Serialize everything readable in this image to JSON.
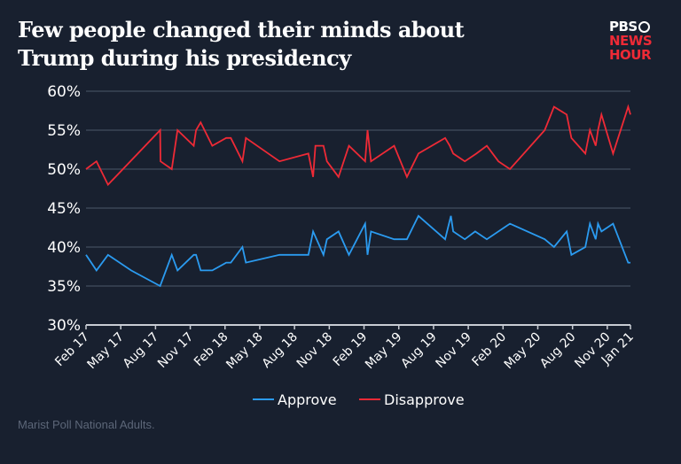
{
  "title": "Few people changed their minds about Trump during his presidency",
  "logo": {
    "line1": "PBS",
    "line2": "NEWS",
    "line3": "HOUR"
  },
  "source": "Marist Poll National Adults.",
  "chart_data": {
    "type": "line",
    "title": "Few people changed their minds about Trump during his presidency",
    "xlabel": "",
    "ylabel": "",
    "ylim": [
      30,
      60
    ],
    "xlim": [
      "2017-02-01",
      "2021-01-01"
    ],
    "grid": true,
    "legend_position": "bottom",
    "y_ticks": [
      "30%",
      "35%",
      "40%",
      "45%",
      "50%",
      "55%",
      "60%"
    ],
    "y_tick_values": [
      30,
      35,
      40,
      45,
      50,
      55,
      60
    ],
    "x_ticks": [
      {
        "label": "Feb 17",
        "date": "2017-02-01"
      },
      {
        "label": "May 17",
        "date": "2017-05-01"
      },
      {
        "label": "Aug 17",
        "date": "2017-08-01"
      },
      {
        "label": "Nov 17",
        "date": "2017-11-01"
      },
      {
        "label": "Feb 18",
        "date": "2018-02-01"
      },
      {
        "label": "May 18",
        "date": "2018-05-01"
      },
      {
        "label": "Aug 18",
        "date": "2018-08-01"
      },
      {
        "label": "Nov 18",
        "date": "2018-11-01"
      },
      {
        "label": "Feb 19",
        "date": "2019-02-01"
      },
      {
        "label": "May 19",
        "date": "2019-05-01"
      },
      {
        "label": "Aug 19",
        "date": "2019-08-01"
      },
      {
        "label": "Nov 19",
        "date": "2019-11-01"
      },
      {
        "label": "Feb 20",
        "date": "2020-02-01"
      },
      {
        "label": "May 20",
        "date": "2020-05-01"
      },
      {
        "label": "Aug 20",
        "date": "2020-08-01"
      },
      {
        "label": "Nov 20",
        "date": "2020-11-01"
      },
      {
        "label": "Jan 21",
        "date": "2021-01-01"
      }
    ],
    "series": [
      {
        "name": "Approve",
        "color": "#2b9bf0",
        "points": [
          [
            "2017-02-01",
            39
          ],
          [
            "2017-02-28",
            37
          ],
          [
            "2017-03-28",
            39
          ],
          [
            "2017-05-28",
            37
          ],
          [
            "2017-08-13",
            35
          ],
          [
            "2017-09-13",
            39
          ],
          [
            "2017-09-28",
            37
          ],
          [
            "2017-11-10",
            39
          ],
          [
            "2017-11-16",
            39
          ],
          [
            "2017-11-28",
            37
          ],
          [
            "2017-12-28",
            37
          ],
          [
            "2018-02-04",
            38
          ],
          [
            "2018-02-16",
            38
          ],
          [
            "2018-03-16",
            40
          ],
          [
            "2018-03-25",
            38
          ],
          [
            "2018-06-22",
            39
          ],
          [
            "2018-09-07",
            39
          ],
          [
            "2018-09-19",
            42
          ],
          [
            "2018-10-16",
            39
          ],
          [
            "2018-10-25",
            41
          ],
          [
            "2018-11-25",
            42
          ],
          [
            "2018-12-22",
            39
          ],
          [
            "2019-02-04",
            43
          ],
          [
            "2019-02-10",
            39
          ],
          [
            "2019-02-19",
            42
          ],
          [
            "2019-04-19",
            41
          ],
          [
            "2019-05-22",
            41
          ],
          [
            "2019-06-22",
            44
          ],
          [
            "2019-09-01",
            41
          ],
          [
            "2019-09-16",
            44
          ],
          [
            "2019-09-22",
            42
          ],
          [
            "2019-10-22",
            41
          ],
          [
            "2019-11-19",
            42
          ],
          [
            "2019-12-19",
            41
          ],
          [
            "2020-02-19",
            43
          ],
          [
            "2020-05-19",
            41
          ],
          [
            "2020-06-13",
            40
          ],
          [
            "2020-07-16",
            42
          ],
          [
            "2020-07-28",
            39
          ],
          [
            "2020-09-04",
            40
          ],
          [
            "2020-09-16",
            43
          ],
          [
            "2020-10-01",
            41
          ],
          [
            "2020-10-07",
            43
          ],
          [
            "2020-10-16",
            42
          ],
          [
            "2020-11-16",
            43
          ],
          [
            "2020-12-25",
            38
          ],
          [
            "2021-01-01",
            38
          ]
        ]
      },
      {
        "name": "Disapprove",
        "color": "#ee2a36",
        "points": [
          [
            "2017-02-01",
            50
          ],
          [
            "2017-02-28",
            51
          ],
          [
            "2017-03-28",
            48
          ],
          [
            "2017-08-13",
            55
          ],
          [
            "2017-08-14",
            51
          ],
          [
            "2017-09-13",
            50
          ],
          [
            "2017-09-28",
            55
          ],
          [
            "2017-11-10",
            53
          ],
          [
            "2017-11-16",
            55
          ],
          [
            "2017-11-28",
            56
          ],
          [
            "2017-12-28",
            53
          ],
          [
            "2018-02-04",
            54
          ],
          [
            "2018-02-16",
            54
          ],
          [
            "2018-03-16",
            51
          ],
          [
            "2018-03-25",
            54
          ],
          [
            "2018-06-22",
            51
          ],
          [
            "2018-09-07",
            52
          ],
          [
            "2018-09-19",
            49
          ],
          [
            "2018-09-25",
            53
          ],
          [
            "2018-10-16",
            53
          ],
          [
            "2018-10-25",
            51
          ],
          [
            "2018-11-25",
            49
          ],
          [
            "2018-12-22",
            53
          ],
          [
            "2019-02-04",
            51
          ],
          [
            "2019-02-10",
            55
          ],
          [
            "2019-02-19",
            51
          ],
          [
            "2019-04-19",
            53
          ],
          [
            "2019-05-22",
            49
          ],
          [
            "2019-06-22",
            52
          ],
          [
            "2019-09-01",
            54
          ],
          [
            "2019-09-13",
            53
          ],
          [
            "2019-09-22",
            52
          ],
          [
            "2019-10-22",
            51
          ],
          [
            "2019-11-22",
            52
          ],
          [
            "2019-12-19",
            53
          ],
          [
            "2020-01-19",
            51
          ],
          [
            "2020-02-19",
            50
          ],
          [
            "2020-05-19",
            55
          ],
          [
            "2020-06-13",
            58
          ],
          [
            "2020-07-16",
            57
          ],
          [
            "2020-07-28",
            54
          ],
          [
            "2020-09-04",
            52
          ],
          [
            "2020-09-16",
            55
          ],
          [
            "2020-10-01",
            53
          ],
          [
            "2020-10-07",
            55
          ],
          [
            "2020-10-16",
            57
          ],
          [
            "2020-11-16",
            52
          ],
          [
            "2020-12-25",
            58
          ],
          [
            "2021-01-01",
            57
          ]
        ]
      }
    ]
  }
}
